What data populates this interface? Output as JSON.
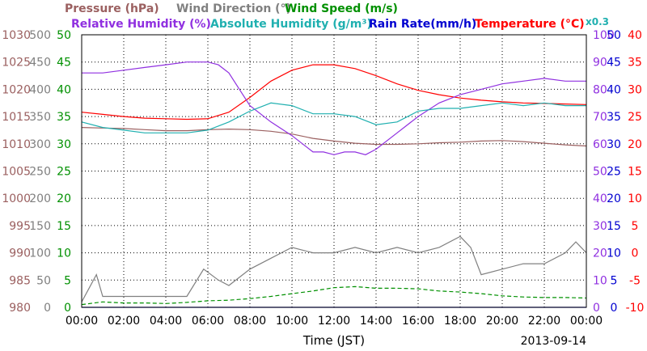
{
  "chart_data": {
    "type": "line",
    "xlabel": "Time (JST)",
    "date_label": "2013-09-14",
    "x_ticks": [
      "00:00",
      "02:00",
      "04:00",
      "06:00",
      "08:00",
      "10:00",
      "12:00",
      "14:00",
      "16:00",
      "18:00",
      "20:00",
      "22:00",
      "00:00"
    ],
    "x_range_hours": [
      0,
      24
    ],
    "legend": {
      "row1": [
        {
          "key": "pressure",
          "text": "Pressure (hPa)",
          "color": "#9b6060"
        },
        {
          "key": "wind_dir",
          "text": "Wind Direction (°)",
          "color": "#808080"
        },
        {
          "key": "wind_speed",
          "text": "Wind Speed (m/s)",
          "color": "#009000"
        }
      ],
      "row2": [
        {
          "key": "rh",
          "text": "Relative Humidity (%)",
          "color": "#9030e0"
        },
        {
          "key": "ah",
          "text": "Absolute Humidity (g/m³)",
          "color": "#20b0b0"
        },
        {
          "key": "rain",
          "text": "Rain Rate(mm/h)",
          "color": "#0000d0"
        },
        {
          "key": "temp",
          "text": "Temperature (°C)",
          "color": "#ff0000"
        }
      ],
      "ah_scale_note": "x0.3"
    },
    "axes": [
      {
        "key": "pressure",
        "side": "left",
        "color": "#9b6060",
        "ticks": [
          "1030",
          "1025",
          "1020",
          "1015",
          "1010",
          "1005",
          "1000",
          "995",
          "990",
          "985",
          "980"
        ],
        "range": [
          980,
          1030
        ]
      },
      {
        "key": "wind_dir",
        "side": "left",
        "color": "#808080",
        "ticks": [
          "500",
          "450",
          "400",
          "350",
          "300",
          "250",
          "200",
          "150",
          "100",
          "50",
          "0"
        ],
        "range": [
          0,
          500
        ]
      },
      {
        "key": "wind_speed",
        "side": "left",
        "color": "#009000",
        "ticks": [
          "50",
          "45",
          "40",
          "35",
          "30",
          "25",
          "20",
          "15",
          "10",
          "5",
          "0"
        ],
        "range": [
          0,
          50
        ]
      },
      {
        "key": "rh",
        "side": "right",
        "color": "#9030e0",
        "ticks": [
          "100",
          "90",
          "80",
          "70",
          "60",
          "50",
          "40",
          "30",
          "20",
          "10",
          "0"
        ],
        "range": [
          0,
          100
        ]
      },
      {
        "key": "rain",
        "side": "right",
        "color": "#0000d0",
        "ticks": [
          "50",
          "45",
          "40",
          "35",
          "30",
          "25",
          "20",
          "15",
          "10",
          "5",
          "0"
        ],
        "range": [
          0,
          50
        ]
      },
      {
        "key": "temp",
        "side": "right",
        "color": "#ff0000",
        "ticks": [
          "40",
          "35",
          "30",
          "25",
          "20",
          "15",
          "10",
          "5",
          "0",
          "-5",
          "-10"
        ],
        "range": [
          -10,
          40
        ]
      }
    ],
    "grid": true,
    "series": [
      {
        "key": "pressure",
        "name": "Pressure (hPa)",
        "axis": "pressure",
        "color": "#9b6060",
        "x": [
          0,
          1,
          2,
          3,
          4,
          5,
          6,
          7,
          8,
          9,
          10,
          11,
          12,
          13,
          14,
          15,
          16,
          17,
          18,
          19,
          20,
          21,
          22,
          23,
          24
        ],
        "y": [
          1013,
          1012.9,
          1012.8,
          1012.6,
          1012.4,
          1012.4,
          1012.6,
          1012.7,
          1012.6,
          1012.3,
          1011.8,
          1011.0,
          1010.5,
          1010.1,
          1009.9,
          1009.9,
          1010.0,
          1010.2,
          1010.3,
          1010.5,
          1010.6,
          1010.4,
          1010.1,
          1009.8,
          1009.6
        ]
      },
      {
        "key": "temp",
        "name": "Temperature (°C)",
        "axis": "temp",
        "color": "#ff0000",
        "x": [
          0,
          1,
          2,
          3,
          4,
          5,
          6,
          7,
          8,
          9,
          10,
          11,
          12,
          13,
          14,
          15,
          16,
          17,
          18,
          19,
          20,
          21,
          22,
          23,
          24
        ],
        "y": [
          25.8,
          25.4,
          25.0,
          24.7,
          24.6,
          24.5,
          24.6,
          25.8,
          28.5,
          31.5,
          33.5,
          34.5,
          34.5,
          33.8,
          32.5,
          31.0,
          29.8,
          29.0,
          28.4,
          28.0,
          27.7,
          27.5,
          27.4,
          27.3,
          27.2
        ]
      },
      {
        "key": "rh",
        "name": "Relative Humidity (%)",
        "axis": "rh",
        "color": "#9030e0",
        "x": [
          0,
          1,
          2,
          3,
          4,
          5,
          6,
          6.5,
          7,
          7.5,
          8,
          9,
          10,
          10.5,
          11,
          11.5,
          12,
          12.5,
          13,
          13.5,
          14,
          15,
          16,
          17,
          18,
          19,
          20,
          21,
          22,
          23,
          24
        ],
        "y": [
          86,
          86,
          87,
          88,
          89,
          90,
          90,
          89,
          86,
          80,
          74,
          68,
          63,
          60,
          57,
          57,
          56,
          57,
          57,
          56,
          58,
          64,
          70,
          75,
          78,
          80,
          82,
          83,
          84,
          83,
          83
        ]
      },
      {
        "key": "ah",
        "name": "Absolute Humidity (g/m³)",
        "axis": "rh",
        "color": "#20b0b0",
        "x": [
          0,
          1,
          2,
          3,
          4,
          5,
          6,
          7,
          8,
          9,
          10,
          11,
          12,
          13,
          14,
          15,
          16,
          17,
          18,
          19,
          20,
          21,
          22,
          23,
          24
        ],
        "y": [
          68,
          66,
          65,
          64,
          64,
          64,
          65,
          68,
          72,
          75,
          74,
          71,
          71,
          70,
          67,
          68,
          72,
          73,
          73,
          74,
          75,
          74,
          75,
          74,
          74
        ]
      },
      {
        "key": "wind_dir",
        "name": "Wind Direction (°)",
        "axis": "wind_dir",
        "color": "#808080",
        "x": [
          0,
          0.7,
          1,
          2,
          3,
          4,
          5,
          5.8,
          6.5,
          7,
          8,
          9,
          10,
          11,
          12,
          13,
          14,
          15,
          16,
          17,
          18,
          18.5,
          19,
          20,
          21,
          22,
          23,
          23.5,
          24
        ],
        "y": [
          10,
          60,
          20,
          20,
          20,
          20,
          20,
          70,
          50,
          40,
          70,
          90,
          110,
          100,
          100,
          110,
          100,
          110,
          100,
          110,
          130,
          110,
          60,
          70,
          80,
          80,
          100,
          120,
          100
        ]
      },
      {
        "key": "wind_speed",
        "name": "Wind Speed (m/s)",
        "axis": "wind_speed",
        "color": "#009000",
        "x": [
          0,
          1,
          2,
          3,
          4,
          5,
          6,
          7,
          8,
          9,
          10,
          11,
          12,
          13,
          14,
          15,
          16,
          17,
          18,
          19,
          20,
          21,
          22,
          23,
          24
        ],
        "y": [
          0.5,
          1.0,
          0.8,
          0.8,
          0.7,
          0.9,
          1.2,
          1.3,
          1.6,
          2.0,
          2.5,
          3.0,
          3.6,
          3.8,
          3.5,
          3.5,
          3.4,
          3.0,
          2.8,
          2.5,
          2.1,
          1.9,
          1.8,
          1.8,
          1.7
        ]
      },
      {
        "key": "rain",
        "name": "Rain Rate(mm/h)",
        "axis": "rain",
        "color": "#0000d0",
        "x": [
          0,
          24
        ],
        "y": [
          0,
          0
        ]
      }
    ]
  }
}
